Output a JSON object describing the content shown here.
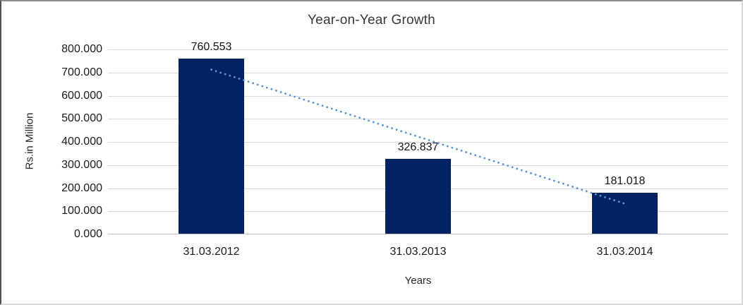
{
  "chart_data": {
    "type": "bar",
    "title": "Year-on-Year Growth",
    "xlabel": "Years",
    "ylabel": "Rs.in Million",
    "categories": [
      "31.03.2012",
      "31.03.2013",
      "31.03.2014"
    ],
    "values": [
      760.553,
      326.837,
      181.018
    ],
    "value_labels": [
      "760.553",
      "326.837",
      "181.018"
    ],
    "ylim": [
      0,
      800
    ],
    "ytick_step": 100,
    "yticks": [
      "800.000",
      "700.000",
      "600.000",
      "500.000",
      "400.000",
      "300.000",
      "200.000",
      "100.000",
      "0.000"
    ],
    "grid": "horizontal-only",
    "legend": "none",
    "bar_color": "#032264",
    "gridline_color": "#d9d9d9",
    "axis_line_color": "#bfbfbf",
    "trendline": {
      "type": "linear",
      "style": "dotted",
      "color": "#5b93d2",
      "start_value": 712.6,
      "end_value": 133.0
    }
  }
}
